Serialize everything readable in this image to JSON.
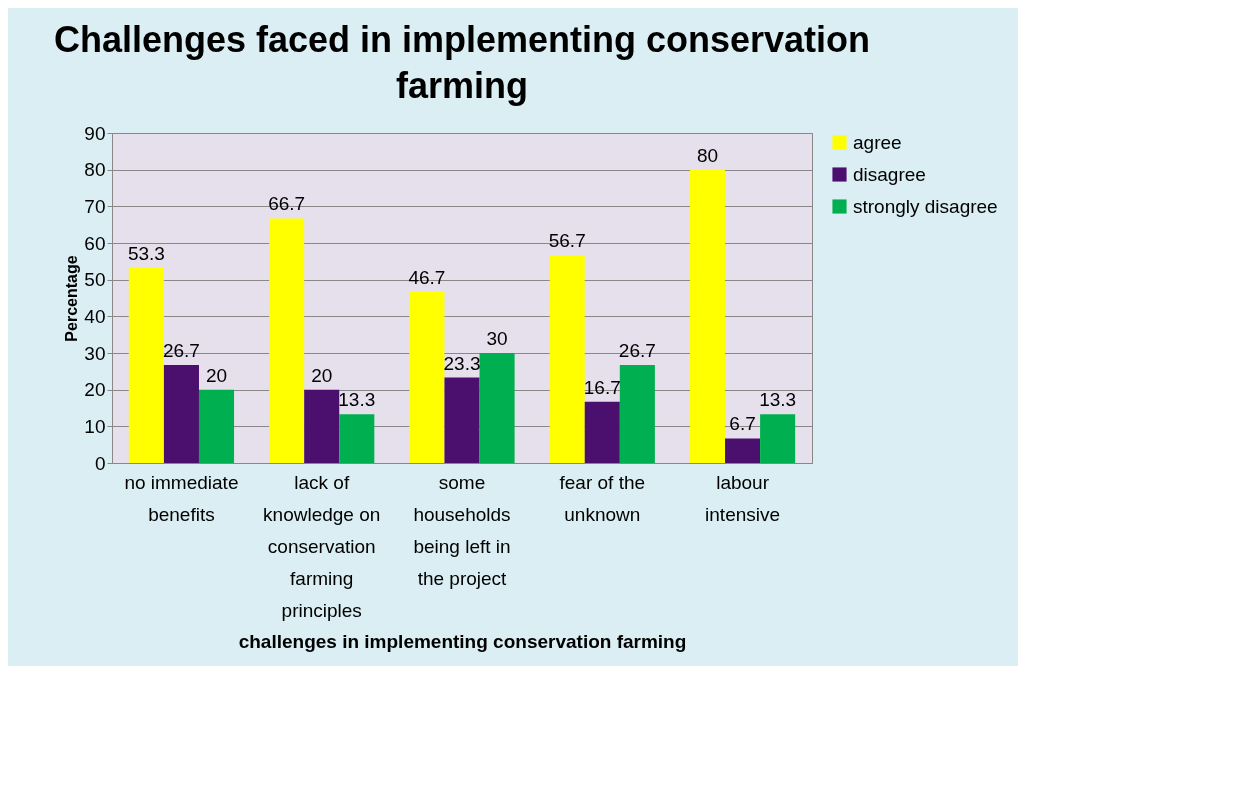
{
  "chart_data": {
    "type": "bar",
    "title": "Challenges faced in  implementing conservation farming",
    "xlabel": "challenges in implementing conservation farming",
    "ylabel": "Percentage",
    "categories": [
      "no immediate benefits",
      "lack of knowledge on conservation farming principles",
      "some households being left in the project",
      "fear of the unknown",
      "labour intensive"
    ],
    "series": [
      {
        "name": "agree",
        "color": "#ffff00",
        "values": [
          53.3,
          66.7,
          46.7,
          56.7,
          80
        ]
      },
      {
        "name": "disagree",
        "color": "#4b0f6e",
        "values": [
          26.7,
          20,
          23.3,
          16.7,
          6.7
        ]
      },
      {
        "name": "strongly disagree",
        "color": "#00b050",
        "values": [
          20,
          13.3,
          30,
          26.7,
          13.3
        ]
      }
    ],
    "ylim": [
      0,
      90
    ],
    "yticks": [
      0,
      10,
      20,
      30,
      40,
      50,
      60,
      70,
      80,
      90
    ],
    "grid": "y",
    "legend": "right",
    "data_labels": true
  }
}
